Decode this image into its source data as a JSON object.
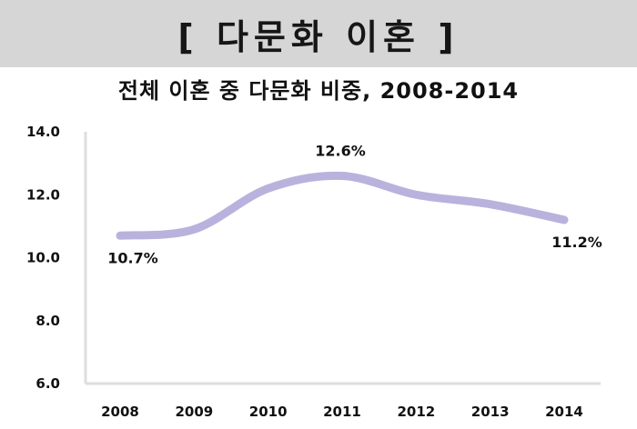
{
  "header": {
    "title": "[ 다문화 이혼 ]"
  },
  "chart_data": {
    "type": "line",
    "title": "전체 이혼 중 다문화 비중, 2008-2014",
    "categories": [
      "2008",
      "2009",
      "2010",
      "2011",
      "2012",
      "2013",
      "2014"
    ],
    "series": [
      {
        "values": [
          10.7,
          10.9,
          12.2,
          12.6,
          12.0,
          11.7,
          11.2
        ],
        "color": "#b9b2dd"
      }
    ],
    "data_labels": [
      {
        "index": 0,
        "text": "10.7%"
      },
      {
        "index": 3,
        "text": "12.6%"
      },
      {
        "index": 6,
        "text": "11.2%"
      }
    ],
    "yticks": [
      "6.0",
      "8.0",
      "10.0",
      "12.0",
      "14.0"
    ],
    "ylim": [
      6.0,
      14.0
    ],
    "xlabel": "",
    "ylabel": "",
    "grid": false,
    "axis_color": "#dedede"
  }
}
